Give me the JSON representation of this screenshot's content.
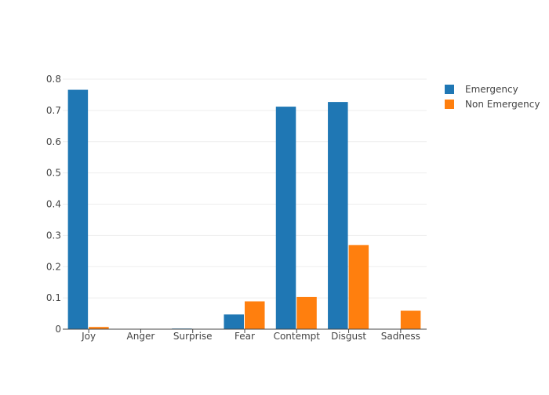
{
  "chart_data": {
    "type": "bar",
    "title": "",
    "xlabel": "",
    "ylabel": "",
    "categories": [
      "Joy",
      "Anger",
      "Surprise",
      "Fear",
      "Contempt",
      "Disgust",
      "Sadness"
    ],
    "ylim": [
      0,
      0.8
    ],
    "yticks": [
      0,
      0.1,
      0.2,
      0.3,
      0.4,
      0.5,
      0.6,
      0.7,
      0.8
    ],
    "ytick_labels": [
      "0",
      "0.1",
      "0.2",
      "0.3",
      "0.4",
      "0.5",
      "0.6",
      "0.7",
      "0.8"
    ],
    "grid": true,
    "legend_position": "top-right",
    "series": [
      {
        "name": "Emergency",
        "color": "#1f77b4",
        "values": [
          0.766,
          0.0,
          0.002,
          0.047,
          0.712,
          0.727,
          0.0
        ]
      },
      {
        "name": "Non Emergency",
        "color": "#ff7f0e",
        "values": [
          0.007,
          0.0,
          0.001,
          0.089,
          0.103,
          0.269,
          0.059
        ]
      }
    ]
  }
}
